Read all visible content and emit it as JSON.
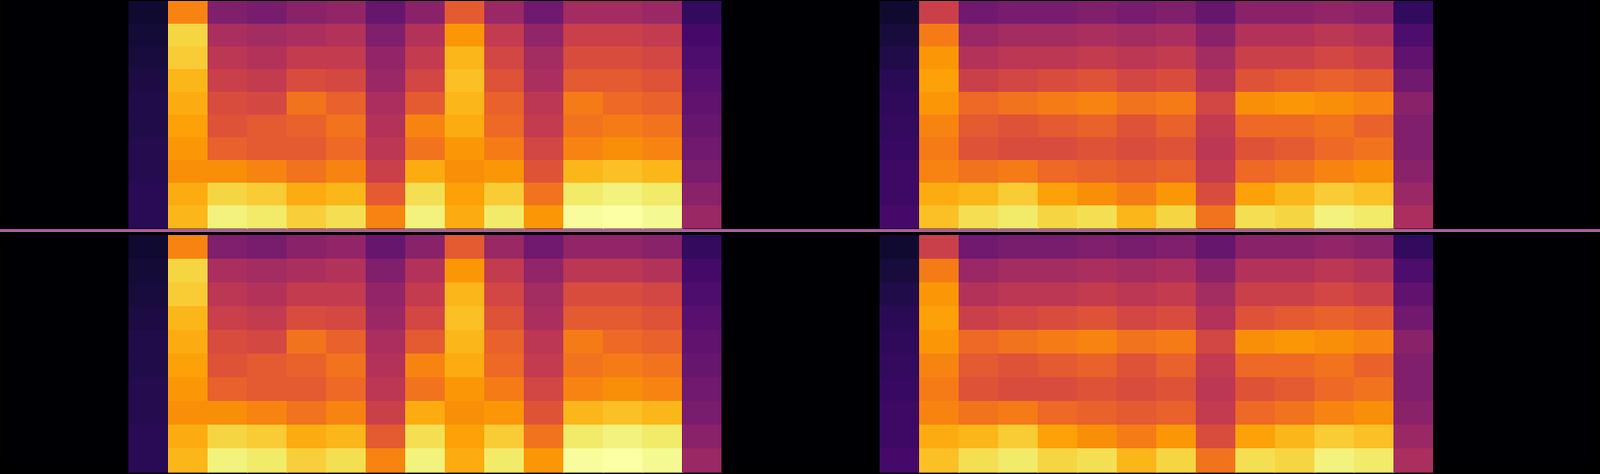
{
  "chart_data": [
    {
      "type": "heatmap",
      "tick_labels": false,
      "color": "inferno",
      "cells": [
        [
          0,
          0,
          0,
          8,
          70,
          34,
          32,
          36,
          38,
          28,
          36,
          60,
          40,
          30,
          42,
          42,
          40,
          16,
          0,
          0,
          0,
          0,
          8,
          52,
          30,
          32,
          32,
          34,
          32,
          34,
          28,
          36,
          36,
          38,
          36,
          16,
          0,
          0,
          0,
          0
        ],
        [
          0,
          0,
          0,
          9,
          86,
          44,
          42,
          44,
          46,
          34,
          46,
          74,
          50,
          38,
          52,
          52,
          50,
          20,
          0,
          0,
          0,
          0,
          10,
          68,
          40,
          42,
          42,
          44,
          42,
          44,
          36,
          46,
          46,
          48,
          46,
          22,
          0,
          0,
          0,
          0
        ],
        [
          0,
          0,
          0,
          10,
          84,
          48,
          46,
          50,
          50,
          38,
          50,
          80,
          54,
          42,
          56,
          56,
          54,
          22,
          0,
          0,
          0,
          0,
          12,
          74,
          46,
          48,
          48,
          50,
          48,
          50,
          42,
          52,
          52,
          54,
          52,
          26,
          0,
          0,
          0,
          0
        ],
        [
          0,
          0,
          0,
          11,
          80,
          52,
          50,
          56,
          55,
          40,
          54,
          82,
          58,
          44,
          60,
          60,
          58,
          24,
          0,
          0,
          0,
          0,
          14,
          76,
          52,
          54,
          56,
          58,
          54,
          56,
          46,
          58,
          60,
          62,
          60,
          30,
          0,
          0,
          0,
          0
        ],
        [
          0,
          0,
          0,
          12,
          78,
          56,
          55,
          66,
          62,
          44,
          60,
          80,
          62,
          48,
          68,
          64,
          62,
          26,
          0,
          0,
          0,
          0,
          15,
          74,
          64,
          66,
          68,
          70,
          66,
          68,
          54,
          72,
          74,
          72,
          70,
          36,
          0,
          0,
          0,
          0
        ],
        [
          0,
          0,
          0,
          12,
          76,
          58,
          60,
          62,
          66,
          46,
          70,
          78,
          64,
          50,
          66,
          68,
          66,
          28,
          0,
          0,
          0,
          0,
          16,
          70,
          60,
          58,
          60,
          62,
          58,
          62,
          50,
          64,
          64,
          66,
          62,
          34,
          0,
          0,
          0,
          0
        ],
        [
          0,
          0,
          0,
          13,
          74,
          62,
          60,
          60,
          64,
          48,
          66,
          74,
          68,
          54,
          70,
          72,
          70,
          30,
          0,
          0,
          0,
          0,
          17,
          68,
          58,
          56,
          56,
          58,
          56,
          58,
          48,
          58,
          60,
          64,
          66,
          34,
          0,
          0,
          0,
          0
        ],
        [
          0,
          0,
          0,
          13,
          72,
          72,
          70,
          66,
          70,
          52,
          78,
          72,
          74,
          58,
          80,
          82,
          80,
          32,
          0,
          0,
          0,
          0,
          18,
          70,
          66,
          68,
          64,
          62,
          60,
          62,
          50,
          64,
          66,
          70,
          72,
          36,
          0,
          0,
          0,
          0
        ],
        [
          0,
          0,
          0,
          14,
          78,
          86,
          84,
          78,
          80,
          60,
          88,
          76,
          84,
          66,
          90,
          92,
          90,
          36,
          0,
          0,
          0,
          0,
          18,
          78,
          80,
          84,
          76,
          72,
          68,
          74,
          56,
          76,
          80,
          84,
          82,
          40,
          0,
          0,
          0,
          0
        ],
        [
          0,
          0,
          0,
          14,
          80,
          92,
          90,
          85,
          88,
          70,
          92,
          78,
          90,
          74,
          95,
          96,
          94,
          40,
          0,
          0,
          0,
          0,
          20,
          82,
          88,
          90,
          86,
          88,
          80,
          86,
          66,
          88,
          86,
          92,
          90,
          44,
          0,
          0,
          0,
          0
        ]
      ]
    },
    {
      "type": "heatmap",
      "tick_labels": false,
      "color": "inferno",
      "cells": [
        [
          0,
          0,
          0,
          8,
          70,
          34,
          32,
          36,
          38,
          28,
          36,
          60,
          40,
          30,
          38,
          38,
          36,
          16,
          0,
          0,
          0,
          0,
          8,
          52,
          30,
          32,
          32,
          34,
          32,
          34,
          28,
          36,
          36,
          38,
          36,
          16,
          0,
          0,
          0,
          0
        ],
        [
          0,
          0,
          0,
          9,
          86,
          44,
          42,
          44,
          46,
          34,
          46,
          74,
          50,
          38,
          48,
          48,
          46,
          20,
          0,
          0,
          0,
          0,
          10,
          68,
          40,
          42,
          42,
          44,
          42,
          44,
          36,
          46,
          46,
          48,
          46,
          22,
          0,
          0,
          0,
          0
        ],
        [
          0,
          0,
          0,
          10,
          84,
          48,
          46,
          50,
          50,
          38,
          50,
          80,
          54,
          42,
          56,
          56,
          54,
          22,
          0,
          0,
          0,
          0,
          12,
          74,
          46,
          48,
          48,
          50,
          48,
          50,
          42,
          52,
          52,
          54,
          52,
          26,
          0,
          0,
          0,
          0
        ],
        [
          0,
          0,
          0,
          11,
          80,
          52,
          50,
          56,
          55,
          40,
          54,
          82,
          58,
          44,
          60,
          60,
          58,
          24,
          0,
          0,
          0,
          0,
          14,
          76,
          52,
          54,
          56,
          58,
          54,
          56,
          46,
          58,
          60,
          62,
          60,
          30,
          0,
          0,
          0,
          0
        ],
        [
          0,
          0,
          0,
          12,
          78,
          56,
          55,
          66,
          62,
          44,
          60,
          80,
          62,
          48,
          68,
          64,
          62,
          26,
          0,
          0,
          0,
          0,
          15,
          74,
          64,
          66,
          68,
          70,
          66,
          68,
          54,
          72,
          74,
          72,
          70,
          36,
          0,
          0,
          0,
          0
        ],
        [
          0,
          0,
          0,
          12,
          76,
          58,
          60,
          62,
          66,
          46,
          70,
          78,
          64,
          50,
          66,
          68,
          66,
          28,
          0,
          0,
          0,
          0,
          16,
          70,
          60,
          58,
          60,
          62,
          58,
          62,
          50,
          64,
          64,
          66,
          62,
          34,
          0,
          0,
          0,
          0
        ],
        [
          0,
          0,
          0,
          13,
          74,
          62,
          60,
          60,
          64,
          48,
          66,
          74,
          68,
          54,
          70,
          72,
          70,
          30,
          0,
          0,
          0,
          0,
          17,
          68,
          58,
          56,
          56,
          58,
          56,
          58,
          48,
          58,
          60,
          64,
          66,
          34,
          0,
          0,
          0,
          0
        ],
        [
          0,
          0,
          0,
          13,
          72,
          72,
          70,
          66,
          70,
          52,
          78,
          72,
          74,
          58,
          80,
          82,
          80,
          32,
          0,
          0,
          0,
          0,
          18,
          70,
          66,
          68,
          64,
          62,
          60,
          62,
          50,
          64,
          66,
          70,
          72,
          36,
          0,
          0,
          0,
          0
        ],
        [
          0,
          0,
          0,
          14,
          78,
          86,
          84,
          78,
          80,
          60,
          88,
          76,
          84,
          66,
          90,
          92,
          90,
          36,
          0,
          0,
          0,
          0,
          18,
          78,
          80,
          84,
          76,
          72,
          68,
          74,
          56,
          76,
          80,
          84,
          82,
          40,
          0,
          0,
          0,
          0
        ],
        [
          0,
          0,
          0,
          14,
          80,
          92,
          90,
          85,
          88,
          70,
          92,
          78,
          90,
          74,
          95,
          96,
          94,
          40,
          0,
          0,
          0,
          0,
          20,
          82,
          88,
          90,
          86,
          88,
          80,
          86,
          66,
          88,
          86,
          92,
          90,
          44,
          0,
          0,
          0,
          0
        ]
      ]
    }
  ]
}
